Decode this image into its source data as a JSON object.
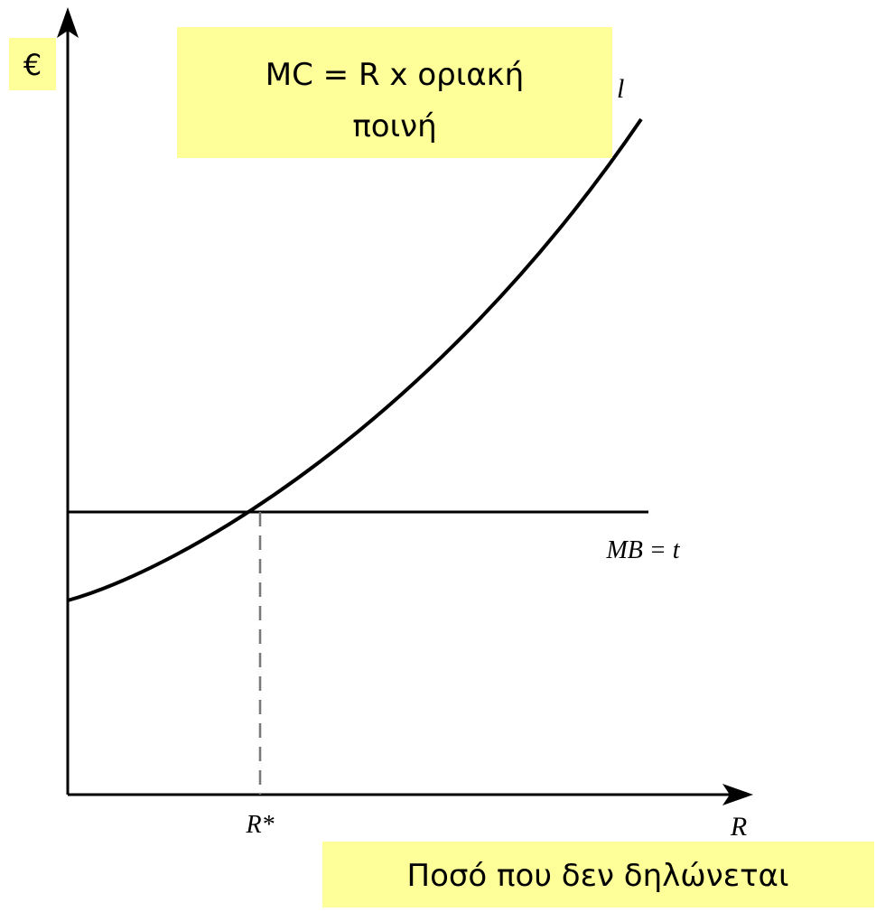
{
  "labels": {
    "y_axis": "€",
    "x_axis": "R",
    "equilibrium": "R*",
    "mb_curve": "MB = t",
    "mc_curve_fragment": "l"
  },
  "mc_box": {
    "lines": [
      "MC = R x οριακή",
      "ποινή"
    ]
  },
  "x_caption": "Ποσό που δεν δηλώνεται"
}
